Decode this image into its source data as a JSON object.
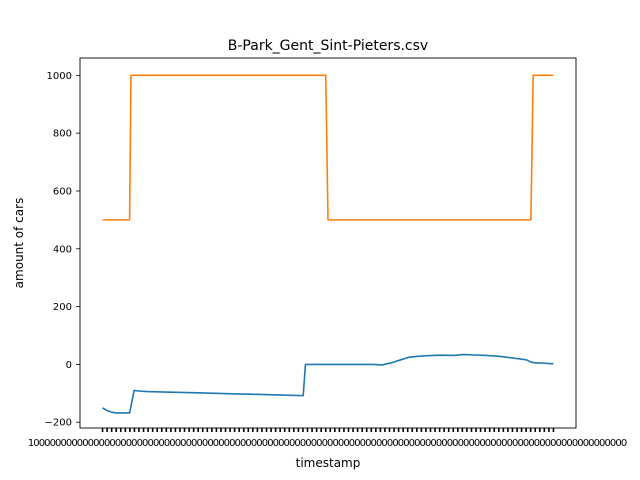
{
  "chart_data": {
    "type": "line",
    "title": "B-Park_Gent_Sint-Pieters.csv",
    "xlabel": "timestamp",
    "ylabel": "amount of cars",
    "ylim": [
      -220,
      1060
    ],
    "yticks": [
      -200,
      0,
      200,
      400,
      600,
      800,
      1000
    ],
    "ytick_labels": [
      "−200",
      "0",
      "200",
      "400",
      "600",
      "800",
      "1000"
    ],
    "xlim": [
      -5,
      105
    ],
    "xtick_count": 100,
    "xtick_text": "1",
    "grid": false,
    "colors": {
      "series_1": "#1f77b4",
      "series_2": "#ff7f0e"
    },
    "series": [
      {
        "x": [
          0,
          1,
          2,
          3,
          4,
          5,
          6,
          7,
          8,
          9,
          10,
          15,
          20,
          25,
          30,
          35,
          40,
          44,
          44.5,
          45,
          47,
          50,
          55,
          60,
          61,
          62,
          63,
          64,
          65,
          66,
          67,
          68,
          70,
          72,
          75,
          78,
          80,
          82,
          85,
          88,
          90,
          92,
          94,
          95,
          96,
          97,
          98,
          100
        ],
        "y": [
          -150,
          -160,
          -165,
          -168,
          -168,
          -168,
          -168,
          -90,
          -92,
          -93,
          -94,
          -96,
          -98,
          -100,
          -102,
          -104,
          -106,
          -108,
          -108,
          0,
          0,
          0,
          0,
          0,
          -1,
          -2,
          2,
          5,
          10,
          15,
          20,
          25,
          28,
          30,
          32,
          31,
          34,
          33,
          31,
          28,
          24,
          20,
          16,
          8,
          5,
          5,
          4,
          2
        ]
      },
      {
        "x": [
          0,
          6,
          6.3,
          49.5,
          50,
          95,
          95.5,
          100
        ],
        "y": [
          500,
          500,
          1000,
          1000,
          500,
          500,
          1000,
          1000
        ]
      }
    ]
  }
}
